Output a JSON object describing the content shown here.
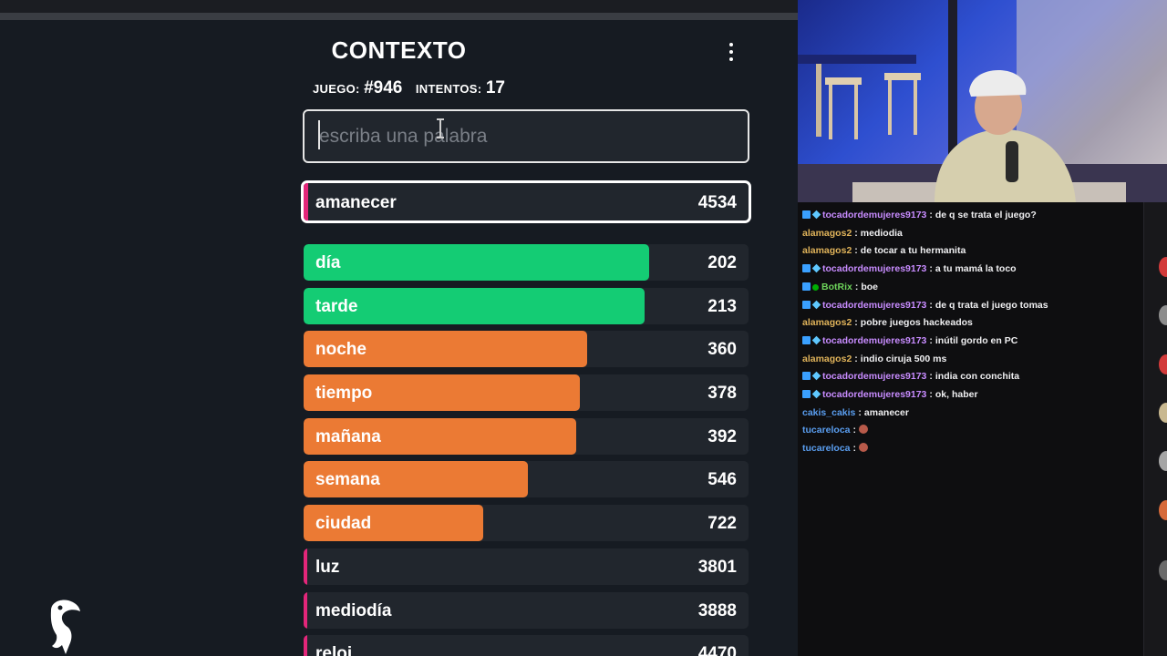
{
  "header": {
    "title": "CONTEXTO"
  },
  "info": {
    "game_label": "JUEGO:",
    "game_value": "#946",
    "attempts_label": "INTENTOS:",
    "attempts_value": "17"
  },
  "search": {
    "placeholder": "escriba una palabra",
    "value": ""
  },
  "last_guess": {
    "word": "amanecer",
    "distance": "4534",
    "color": "#e3267a"
  },
  "guesses": [
    {
      "word": "día",
      "distance": "202",
      "fill": 0.777,
      "color": "#14cc74"
    },
    {
      "word": "tarde",
      "distance": "213",
      "fill": 0.766,
      "color": "#14cc74"
    },
    {
      "word": "noche",
      "distance": "360",
      "fill": 0.637,
      "color": "#eb7a34"
    },
    {
      "word": "tiempo",
      "distance": "378",
      "fill": 0.621,
      "color": "#eb7a34"
    },
    {
      "word": "mañana",
      "distance": "392",
      "fill": 0.613,
      "color": "#eb7a34"
    },
    {
      "word": "semana",
      "distance": "546",
      "fill": 0.504,
      "color": "#eb7a34"
    },
    {
      "word": "ciudad",
      "distance": "722",
      "fill": 0.404,
      "color": "#eb7a34"
    },
    {
      "word": "luz",
      "distance": "3801",
      "fill": 0.008,
      "color": "#e3267a"
    },
    {
      "word": "mediodía",
      "distance": "3888",
      "fill": 0.008,
      "color": "#e3267a"
    },
    {
      "word": "reloj",
      "distance": "4470",
      "fill": 0.008,
      "color": "#e3267a"
    }
  ],
  "chat": [
    {
      "user": "tocadordemujeres9173",
      "color": "purple",
      "badges": "sub",
      "text": "de q se trata el juego?"
    },
    {
      "user": "alamagos2",
      "color": "gold",
      "badges": "",
      "text": "mediodia"
    },
    {
      "user": "alamagos2",
      "color": "gold",
      "badges": "",
      "text": "de tocar a tu hermanita"
    },
    {
      "user": "tocadordemujeres9173",
      "color": "purple",
      "badges": "sub",
      "text": "a tu mamá la toco"
    },
    {
      "user": "BotRix",
      "color": "green",
      "badges": "bot",
      "text": "boe"
    },
    {
      "user": "tocadordemujeres9173",
      "color": "purple",
      "badges": "sub",
      "text": "de q trata el juego tomas"
    },
    {
      "user": "alamagos2",
      "color": "gold",
      "badges": "",
      "text": "pobre juegos hackeados"
    },
    {
      "user": "tocadordemujeres9173",
      "color": "purple",
      "badges": "sub",
      "text": "inútil gordo en PC"
    },
    {
      "user": "alamagos2",
      "color": "gold",
      "badges": "",
      "text": "indio ciruja 500 ms"
    },
    {
      "user": "tocadordemujeres9173",
      "color": "purple",
      "badges": "sub",
      "text": "india con conchita"
    },
    {
      "user": "tocadordemujeres9173",
      "color": "purple",
      "badges": "sub",
      "text": "ok, haber"
    },
    {
      "user": "cakis_cakis",
      "color": "blue",
      "badges": "",
      "text": "amanecer"
    },
    {
      "user": "tucareloca",
      "color": "blue",
      "badges": "",
      "text": "",
      "emote": "emote"
    },
    {
      "user": "tucareloca",
      "color": "blue",
      "badges": "",
      "text": "",
      "emote": "emote"
    }
  ],
  "chat_separator": ":",
  "icons": {
    "menu": "more-vertical-icon",
    "logo": "toucan-logo-icon"
  }
}
